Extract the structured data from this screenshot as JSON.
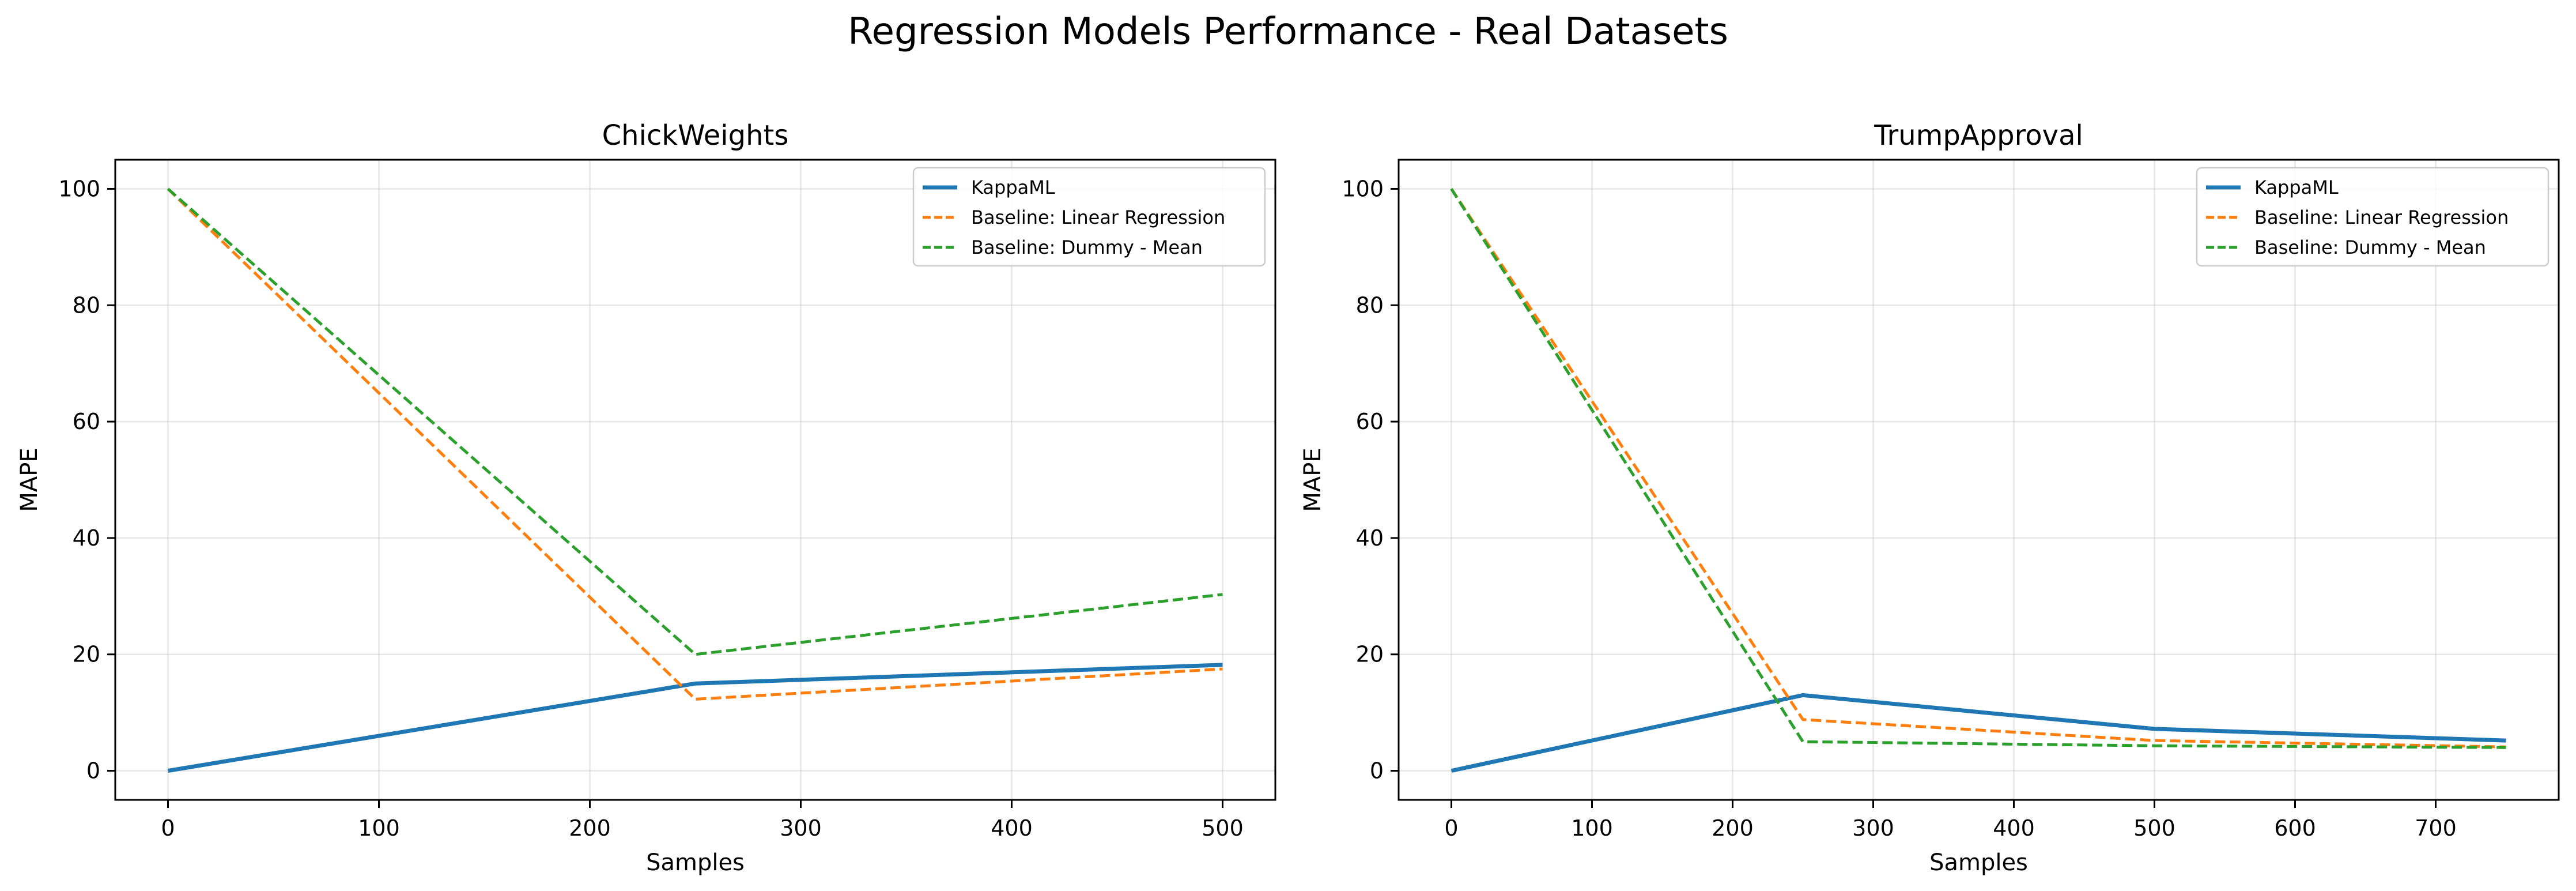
{
  "figure": {
    "suptitle": "Regression Models Performance - Real Datasets"
  },
  "chart_data": [
    {
      "type": "line",
      "title": "ChickWeights",
      "xlabel": "Samples",
      "ylabel": "MAPE",
      "xlim": [
        -25,
        525
      ],
      "ylim": [
        -5,
        105
      ],
      "xticks": [
        0,
        100,
        200,
        300,
        400,
        500
      ],
      "yticks": [
        0,
        20,
        40,
        60,
        80,
        100
      ],
      "grid": true,
      "legend_position": "upper right",
      "series": [
        {
          "name": "KappaML",
          "x": [
            0,
            250,
            500
          ],
          "y": [
            0,
            15,
            18.2
          ],
          "color": "#1f77b4",
          "style": "solid"
        },
        {
          "name": "Baseline: Linear Regression",
          "x": [
            0,
            250,
            500
          ],
          "y": [
            100,
            12.3,
            17.5
          ],
          "color": "#ff7f0e",
          "style": "dashed"
        },
        {
          "name": "Baseline: Dummy - Mean",
          "x": [
            0,
            250,
            500
          ],
          "y": [
            100,
            20,
            30.3
          ],
          "color": "#2ca02c",
          "style": "dashed"
        }
      ]
    },
    {
      "type": "line",
      "title": "TrumpApproval",
      "xlabel": "Samples",
      "ylabel": "MAPE",
      "xlim": [
        -37.5,
        787.5
      ],
      "ylim": [
        -5,
        105
      ],
      "xticks": [
        0,
        100,
        200,
        300,
        400,
        500,
        600,
        700
      ],
      "yticks": [
        0,
        20,
        40,
        60,
        80,
        100
      ],
      "grid": true,
      "legend_position": "upper right",
      "series": [
        {
          "name": "KappaML",
          "x": [
            0,
            250,
            500,
            750
          ],
          "y": [
            0,
            13,
            7.2,
            5.2
          ],
          "color": "#1f77b4",
          "style": "solid"
        },
        {
          "name": "Baseline: Linear Regression",
          "x": [
            0,
            250,
            500,
            750
          ],
          "y": [
            100,
            8.8,
            5.2,
            4.1
          ],
          "color": "#ff7f0e",
          "style": "dashed"
        },
        {
          "name": "Baseline: Dummy - Mean",
          "x": [
            0,
            250,
            500,
            750
          ],
          "y": [
            100,
            5,
            4.3,
            4
          ],
          "color": "#2ca02c",
          "style": "dashed"
        }
      ]
    }
  ]
}
